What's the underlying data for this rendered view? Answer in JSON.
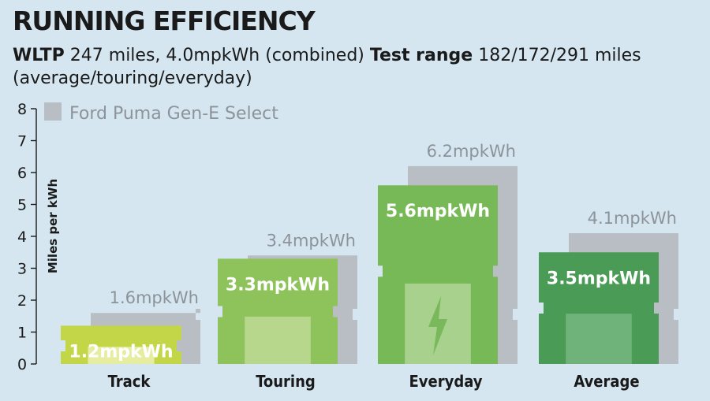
{
  "header": {
    "title": "RUNNING EFFICIENCY",
    "wltp_label": "WLTP",
    "wltp_text": " 247 miles, 4.0mpkWh (combined) ",
    "range_label": "Test range",
    "range_text": " 182/172/291 miles (average/touring/everyday)"
  },
  "chart_data": {
    "type": "bar",
    "ylabel": "Miles per kWh",
    "ylim": [
      0,
      8
    ],
    "yticks": [
      "0",
      "1",
      "2",
      "3",
      "4",
      "5",
      "6",
      "7",
      "8"
    ],
    "categories": [
      "Track",
      "Touring",
      "Everyday",
      "Average"
    ],
    "series": [
      {
        "name": "",
        "values": [
          1.2,
          3.3,
          5.6,
          3.5
        ],
        "labels": [
          "1.2mpkWh",
          "3.3mpkWh",
          "5.6mpkWh",
          "3.5mpkWh"
        ]
      },
      {
        "name": "Ford Puma Gen-E Select",
        "values": [
          1.6,
          3.4,
          6.2,
          4.1
        ],
        "labels": [
          "1.6mpkWh",
          "3.4mpkWh",
          "6.2mpkWh",
          "4.1mpkWh"
        ]
      }
    ],
    "legend": "top-left",
    "colors": {
      "comparison": "#b8bec3",
      "value_text": "#8c9399",
      "bars": [
        "#c2d648",
        "#8ec25a",
        "#78b957",
        "#4a9b56"
      ],
      "battery_fill": [
        "#e6eca0",
        "#b6d78c",
        "#a7d18c",
        "#6fb37a"
      ]
    }
  }
}
